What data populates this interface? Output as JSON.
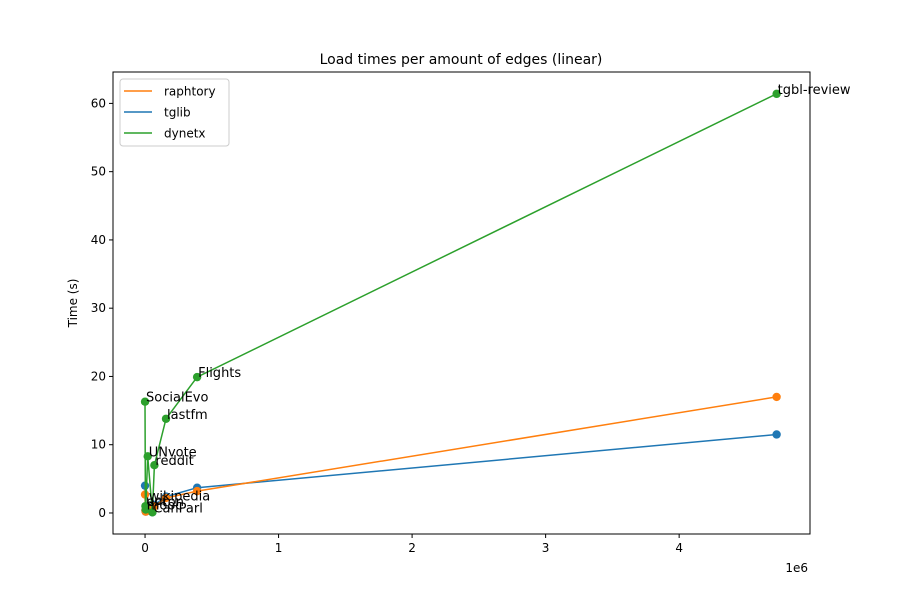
{
  "chart_data": {
    "type": "line",
    "title": "Load times per amount of edges (linear)",
    "xlabel": "",
    "ylabel": "Time (s)",
    "x_offset_label": "1e6",
    "xlim": [
      -0.24,
      4.98
    ],
    "ylim": [
      -3.08,
      64.6
    ],
    "x_ticks": [
      0,
      1,
      2,
      3,
      4
    ],
    "x_tick_labels": [
      "0",
      "1",
      "2",
      "3",
      "4"
    ],
    "y_ticks": [
      0,
      10,
      20,
      30,
      40,
      50,
      60
    ],
    "y_tick_labels": [
      "0",
      "10",
      "20",
      "30",
      "40",
      "50",
      "60"
    ],
    "grid": false,
    "legend_position": "top-left",
    "series": [
      {
        "name": "raphtory",
        "color": "#ff7f0e",
        "points": [
          {
            "x": 0.0,
            "y": 2.7
          },
          {
            "x": 0.003,
            "y": 0.4
          },
          {
            "x": 0.005,
            "y": 0.2
          },
          {
            "x": 0.02,
            "y": 0.6
          },
          {
            "x": 0.055,
            "y": 0.3
          },
          {
            "x": 0.07,
            "y": 1.0
          },
          {
            "x": 0.157,
            "y": 2.2
          },
          {
            "x": 0.39,
            "y": 3.2
          },
          {
            "x": 4.73,
            "y": 17.0
          }
        ]
      },
      {
        "name": "tglib",
        "color": "#1f77b4",
        "points": [
          {
            "x": 0.0,
            "y": 4.0
          },
          {
            "x": 0.003,
            "y": 0.3
          },
          {
            "x": 0.005,
            "y": 0.2
          },
          {
            "x": 0.02,
            "y": 0.5
          },
          {
            "x": 0.055,
            "y": 0.1
          },
          {
            "x": 0.07,
            "y": 1.2
          },
          {
            "x": 0.157,
            "y": 2.4
          },
          {
            "x": 0.39,
            "y": 3.7
          },
          {
            "x": 4.73,
            "y": 11.5
          }
        ]
      },
      {
        "name": "dynetx",
        "color": "#2ca02c",
        "points": [
          {
            "x": 0.0,
            "y": 16.3,
            "label": "SocialEvo"
          },
          {
            "x": 0.003,
            "y": 1.0,
            "label": "enron"
          },
          {
            "x": 0.005,
            "y": 0.5,
            "label": "mooc"
          },
          {
            "x": 0.02,
            "y": 8.3,
            "label": "UNvote"
          },
          {
            "x": 0.055,
            "y": 0.1,
            "label": "CanParl"
          },
          {
            "x": 0.07,
            "y": 7.0,
            "label": "reddit"
          },
          {
            "x": 0.157,
            "y": 13.8,
            "label": "lastfm"
          },
          {
            "x": 0.39,
            "y": 19.9,
            "label": "Flights"
          },
          {
            "x": 4.73,
            "y": 61.4,
            "label": "tgbl-review"
          }
        ]
      }
    ],
    "extra_annotations": [
      {
        "text": "wikipedia",
        "x": 0.02,
        "y": 1.8
      },
      {
        "text": "uci",
        "x": 0.0,
        "y": 1.2
      }
    ]
  }
}
